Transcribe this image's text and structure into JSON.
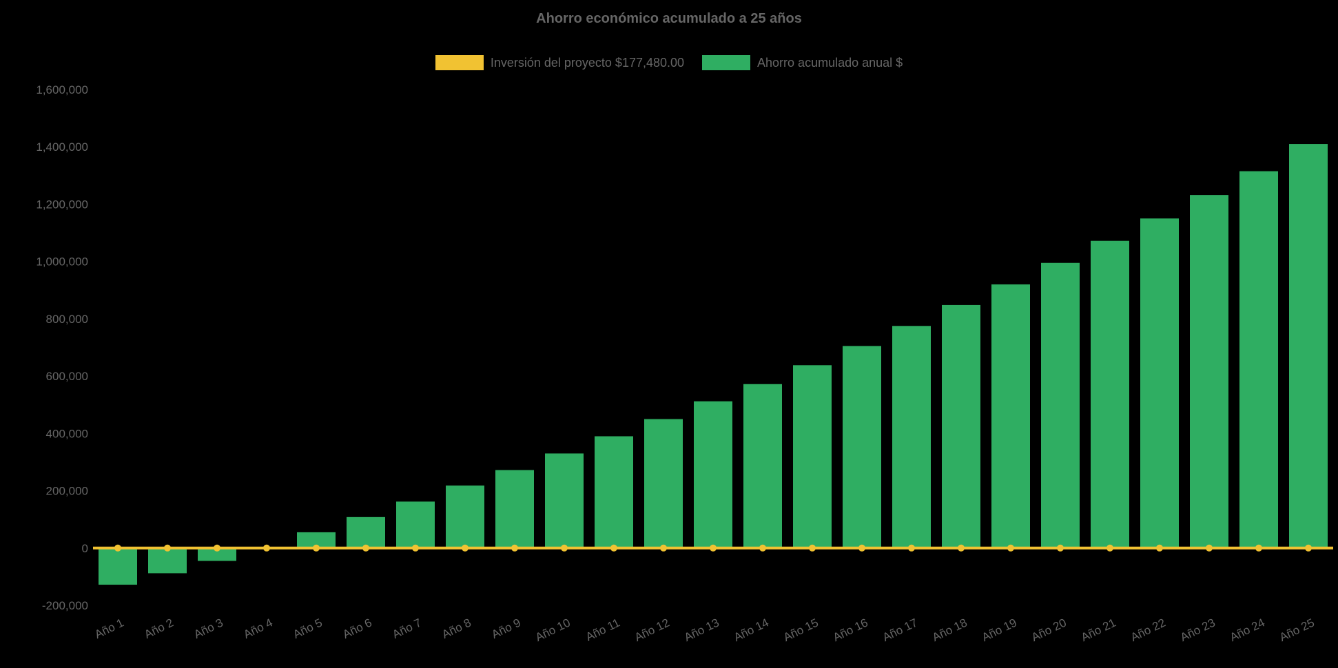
{
  "chart_data": {
    "type": "bar",
    "title": "Ahorro económico acumulado a 25 años",
    "background": "#000000",
    "text_color": "#666666",
    "grid": false,
    "legend_position": "top",
    "ylim": [
      -200000,
      1600000
    ],
    "ytick_step": 200000,
    "categories": [
      "Año 1",
      "Año 2",
      "Año 3",
      "Año 4",
      "Año 5",
      "Año 6",
      "Año 7",
      "Año 8",
      "Año 9",
      "Año 10",
      "Año 11",
      "Año 12",
      "Año 13",
      "Año 14",
      "Año 15",
      "Año 16",
      "Año 17",
      "Año 18",
      "Año 19",
      "Año 20",
      "Año 21",
      "Año 22",
      "Año 23",
      "Año 24",
      "Año 25"
    ],
    "series": [
      {
        "name": "Inversión del proyecto $177,480.00",
        "type": "line",
        "color": "#f1c232",
        "values": [
          0,
          0,
          0,
          0,
          0,
          0,
          0,
          0,
          0,
          0,
          0,
          0,
          0,
          0,
          0,
          0,
          0,
          0,
          0,
          0,
          0,
          0,
          0,
          0,
          0
        ]
      },
      {
        "name": "Ahorro acumulado anual $",
        "type": "bar",
        "color": "#2fae62",
        "values": [
          -128000,
          -88000,
          -45000,
          3000,
          55000,
          108000,
          162000,
          218000,
          272000,
          330000,
          390000,
          450000,
          512000,
          572000,
          638000,
          705000,
          775000,
          848000,
          920000,
          995000,
          1072000,
          1150000,
          1232000,
          1315000,
          1410000
        ]
      }
    ]
  }
}
